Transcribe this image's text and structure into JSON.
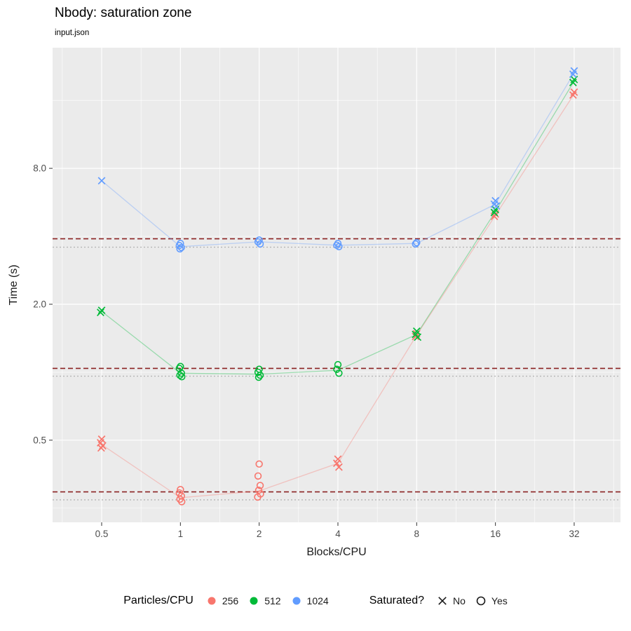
{
  "title": "Nbody: saturation zone",
  "subtitle": "input.json",
  "chart_data": {
    "type": "scatter",
    "title": "Nbody: saturation zone",
    "subtitle": "input.json",
    "xlabel": "Blocks/CPU",
    "ylabel": "Time (s)",
    "x_scale": "log10",
    "y_scale": "log10",
    "x_domain": [
      0.3246,
      48.1
    ],
    "y_domain": [
      0.2163,
      27.39
    ],
    "panel": {
      "l": 75,
      "t": 68,
      "r": 885,
      "b": 745
    },
    "colors": {
      "panel_bg": "#EBEBEB",
      "grid": "#FFFFFF",
      "tick_text": "#4D4D4D",
      "axis_text": "#1a1a1a",
      "dashed_line": "#8B2222",
      "dotted_line": "#B5B5B5"
    },
    "x_ticks": [
      {
        "v": 0.5,
        "label": "0.5"
      },
      {
        "v": 1,
        "label": "1"
      },
      {
        "v": 2,
        "label": "2"
      },
      {
        "v": 4,
        "label": "4"
      },
      {
        "v": 8,
        "label": "8"
      },
      {
        "v": 16,
        "label": "16"
      },
      {
        "v": 32,
        "label": "32"
      }
    ],
    "x_minor": [
      0.3536,
      0.7071,
      1.4142,
      2.8284,
      5.6569,
      11.3137,
      22.6274,
      45.2548
    ],
    "y_ticks": [
      {
        "v": 0.5,
        "label": "0.5"
      },
      {
        "v": 2,
        "label": "2.0"
      },
      {
        "v": 8,
        "label": "8.0"
      }
    ],
    "y_minor": [
      0.25,
      1,
      4,
      16
    ],
    "hlines": [
      {
        "y": 3.9,
        "dash": "dashed"
      },
      {
        "y": 3.58,
        "dash": "dotted"
      },
      {
        "y": 1.04,
        "dash": "dashed"
      },
      {
        "y": 0.96,
        "dash": "dotted"
      },
      {
        "y": 0.295,
        "dash": "dashed"
      },
      {
        "y": 0.272,
        "dash": "dotted"
      }
    ],
    "series": [
      {
        "name": "256",
        "color": "#F8766D",
        "line": [
          [
            0.5,
            0.478
          ],
          [
            1,
            0.278
          ],
          [
            2,
            0.298
          ],
          [
            4,
            0.395
          ],
          [
            8,
            1.46
          ],
          [
            16,
            4.95
          ],
          [
            32,
            17.1
          ]
        ],
        "points": [
          {
            "x": 0.5,
            "shape": "x",
            "ys": [
              0.505,
              0.487,
              0.472,
              0.462
            ]
          },
          {
            "x": 1,
            "shape": "o",
            "ys": [
              0.302,
              0.292,
              0.283,
              0.274,
              0.267
            ]
          },
          {
            "x": 2,
            "shape": "o",
            "ys": [
              0.392,
              0.347,
              0.315,
              0.3,
              0.289,
              0.28
            ]
          },
          {
            "x": 4,
            "shape": "x",
            "ys": [
              0.412,
              0.395,
              0.38
            ]
          },
          {
            "x": 8,
            "shape": "x",
            "ys": [
              1.48,
              1.44
            ]
          },
          {
            "x": 16,
            "shape": "x",
            "ys": [
              5.02,
              4.9
            ]
          },
          {
            "x": 32,
            "shape": "x",
            "ys": [
              17.4,
              16.9
            ]
          }
        ]
      },
      {
        "name": "512",
        "color": "#00BA38",
        "line": [
          [
            0.5,
            1.86
          ],
          [
            1,
            0.99
          ],
          [
            2,
            0.98
          ],
          [
            4,
            1.02
          ],
          [
            8,
            1.47
          ],
          [
            16,
            5.15
          ],
          [
            32,
            19.5
          ]
        ],
        "points": [
          {
            "x": 0.5,
            "shape": "x",
            "ys": [
              1.88,
              1.84
            ]
          },
          {
            "x": 1,
            "shape": "o",
            "ys": [
              1.06,
              1.04,
              0.99,
              0.97,
              0.955
            ]
          },
          {
            "x": 2,
            "shape": "o",
            "ys": [
              1.03,
              1.0,
              0.97,
              0.95
            ]
          },
          {
            "x": 4,
            "shape": "o",
            "ys": [
              1.08,
              1.03,
              0.99
            ]
          },
          {
            "x": 8,
            "shape": "x",
            "ys": [
              1.52,
              1.47,
              1.43
            ]
          },
          {
            "x": 16,
            "shape": "x",
            "ys": [
              5.25,
              5.1
            ]
          },
          {
            "x": 32,
            "shape": "x",
            "ys": [
              19.8,
              19.2
            ]
          }
        ]
      },
      {
        "name": "1024",
        "color": "#619CFF",
        "line": [
          [
            0.5,
            7.05
          ],
          [
            1,
            3.6
          ],
          [
            2,
            3.78
          ],
          [
            4,
            3.65
          ],
          [
            8,
            3.72
          ],
          [
            16,
            5.55
          ],
          [
            32,
            21.2
          ]
        ],
        "points": [
          {
            "x": 0.5,
            "shape": "x",
            "ys": [
              7.05
            ]
          },
          {
            "x": 1,
            "shape": "o",
            "ys": [
              3.72,
              3.64,
              3.57,
              3.52
            ]
          },
          {
            "x": 2,
            "shape": "o",
            "ys": [
              3.85,
              3.78,
              3.7
            ]
          },
          {
            "x": 4,
            "shape": "o",
            "ys": [
              3.72,
              3.65,
              3.6
            ]
          },
          {
            "x": 8,
            "shape": "o",
            "ys": [
              3.75,
              3.7
            ]
          },
          {
            "x": 16,
            "shape": "x",
            "ys": [
              5.75,
              5.55,
              5.45
            ]
          },
          {
            "x": 32,
            "shape": "x",
            "ys": [
              21.6,
              20.9
            ]
          }
        ]
      }
    ],
    "legend": {
      "color_title": "Particles/CPU",
      "color_items": [
        {
          "label": "256",
          "color": "#F8766D"
        },
        {
          "label": "512",
          "color": "#00BA38"
        },
        {
          "label": "1024",
          "color": "#619CFF"
        }
      ],
      "shape_title": "Saturated?",
      "shape_items": [
        {
          "label": "No",
          "shape": "x"
        },
        {
          "label": "Yes",
          "shape": "o"
        }
      ]
    }
  }
}
